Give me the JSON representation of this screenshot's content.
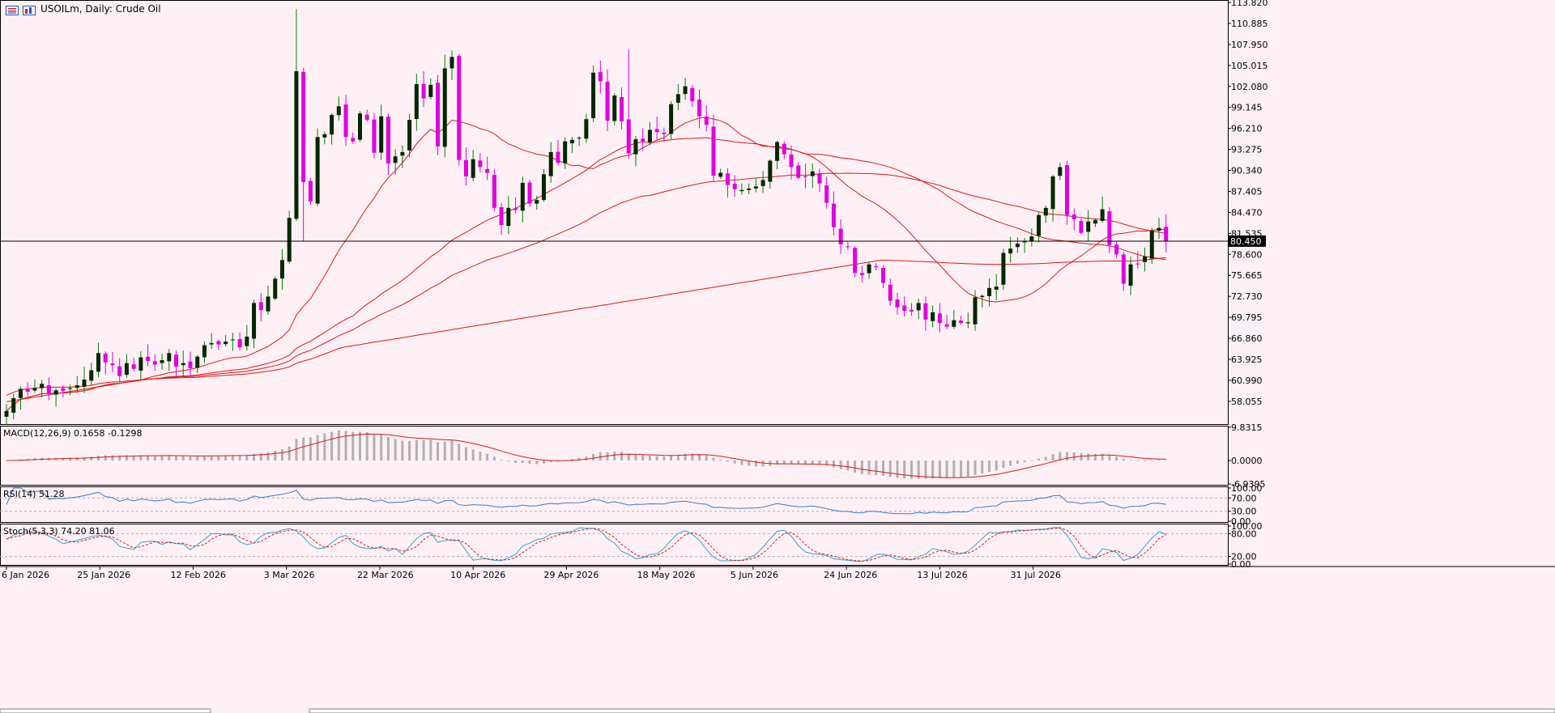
{
  "window": {
    "title": "USOILm, Daily:  Crude Oil",
    "icons": [
      "list-icon",
      "chart-icon"
    ]
  },
  "colors": {
    "background": "#fff0f5",
    "bull_candle": "#002800",
    "bear_candle": "#e000e0",
    "wick_bull": "#008000",
    "wick_bear": "#e000e0",
    "ma_line": "#e01818",
    "macd_hist": "#b0b0b0",
    "macd_signal": "#e01818",
    "rsi": "#2f7fd0",
    "stoch_main": "#2fa8d0",
    "stoch_signal": "#e01818",
    "price_line": "#000000"
  },
  "chart_data": [
    {
      "type": "candlestick",
      "title": "USOILm, Daily:  Crude Oil",
      "ylim": [
        55.1,
        113.82
      ],
      "y_ticks": [
        "113.820",
        "110.885",
        "107.950",
        "105.015",
        "102.080",
        "99.145",
        "96.210",
        "93.275",
        "90.340",
        "87.405",
        "84.470",
        "81.535",
        "78.600",
        "75.665",
        "72.730",
        "69.795",
        "66.860",
        "63.925",
        "60.990",
        "58.055"
      ],
      "x_ticks": [
        "6 Jan 2026",
        "25 Jan 2026",
        "12 Feb 2026",
        "3 Mar 2026",
        "22 Mar 2026",
        "10 Apr 2026",
        "29 Apr 2026",
        "18 May 2026",
        "5 Jun 2026",
        "24 Jun 2026",
        "13 Jul 2026",
        "31 Jul 2026"
      ],
      "current_price": "80.450",
      "close": [
        56.7,
        58.5,
        59.8,
        59.4,
        59.9,
        60.5,
        59.2,
        59.6,
        59.5,
        59.9,
        60.3,
        61.1,
        62.4,
        64.8,
        63.5,
        63.1,
        61.6,
        63.4,
        62.6,
        64.2,
        63.7,
        63.2,
        63.8,
        64.8,
        62.9,
        63.4,
        62.7,
        64.3,
        65.9,
        66.2,
        66.0,
        66.4,
        66.7,
        65.6,
        67.1,
        71.8,
        70.8,
        72.7,
        75.2,
        77.8,
        83.7,
        104.2,
        88.7,
        86.0,
        95.0,
        95.4,
        98.1,
        99.3,
        95.0,
        94.4,
        98.3,
        97.4,
        92.8,
        97.9,
        91.3,
        92.3,
        92.9,
        97.4,
        102.4,
        100.4,
        102.3,
        93.7,
        104.6,
        106.2,
        91.8,
        89.5,
        91.9,
        90.8,
        90.0,
        85.1,
        82.7,
        85.1,
        84.8,
        88.6,
        85.7,
        86.2,
        89.8,
        92.9,
        91.4,
        94.4,
        94.6,
        94.9,
        97.5,
        104.0,
        102.8,
        97.3,
        100.8,
        97.2,
        92.7,
        94.7,
        94.4,
        96.0,
        95.7,
        95.4,
        99.6,
        101.0,
        102.1,
        100.0,
        97.9,
        96.7,
        89.6,
        90.0,
        88.3,
        87.7,
        87.6,
        87.8,
        88.1,
        89.0,
        91.7,
        94.3,
        92.6,
        90.8,
        89.3,
        89.4,
        90.2,
        88.5,
        85.8,
        82.4,
        80.0,
        79.6,
        76.0,
        75.7,
        77.2,
        76.8,
        74.6,
        72.1,
        71.2,
        70.7,
        70.6,
        71.8,
        69.5,
        70.5,
        69.0,
        68.5,
        69.4,
        69.0,
        69.1,
        72.6,
        72.8,
        73.9,
        74.1,
        78.8,
        79.4,
        80.1,
        80.4,
        81.1,
        84.1,
        85.1,
        89.5,
        90.8,
        84.1,
        83.5,
        81.6,
        83.2,
        83.4,
        84.9,
        79.9,
        78.6,
        74.5,
        77.2,
        77.3,
        78.3,
        81.9,
        82.3,
        80.5
      ]
    },
    {
      "type": "line",
      "title": "MACD(12,26,9) 0.1658 -0.1298",
      "ylim": [
        -6.9395,
        9.8315
      ],
      "y_ticks": [
        "9.8315",
        "0.0000",
        "-6.9395"
      ]
    },
    {
      "type": "line",
      "title": "RSI(14) 51.28",
      "ylim": [
        0,
        100
      ],
      "y_ticks": [
        "100.00",
        "70.00",
        "30.00",
        "0.00"
      ]
    },
    {
      "type": "line",
      "title": "Stoch(5,3,3) 74.20 81.06",
      "ylim": [
        0,
        100
      ],
      "y_ticks": [
        "100.00",
        "80.00",
        "20.00",
        "0.00"
      ]
    }
  ]
}
